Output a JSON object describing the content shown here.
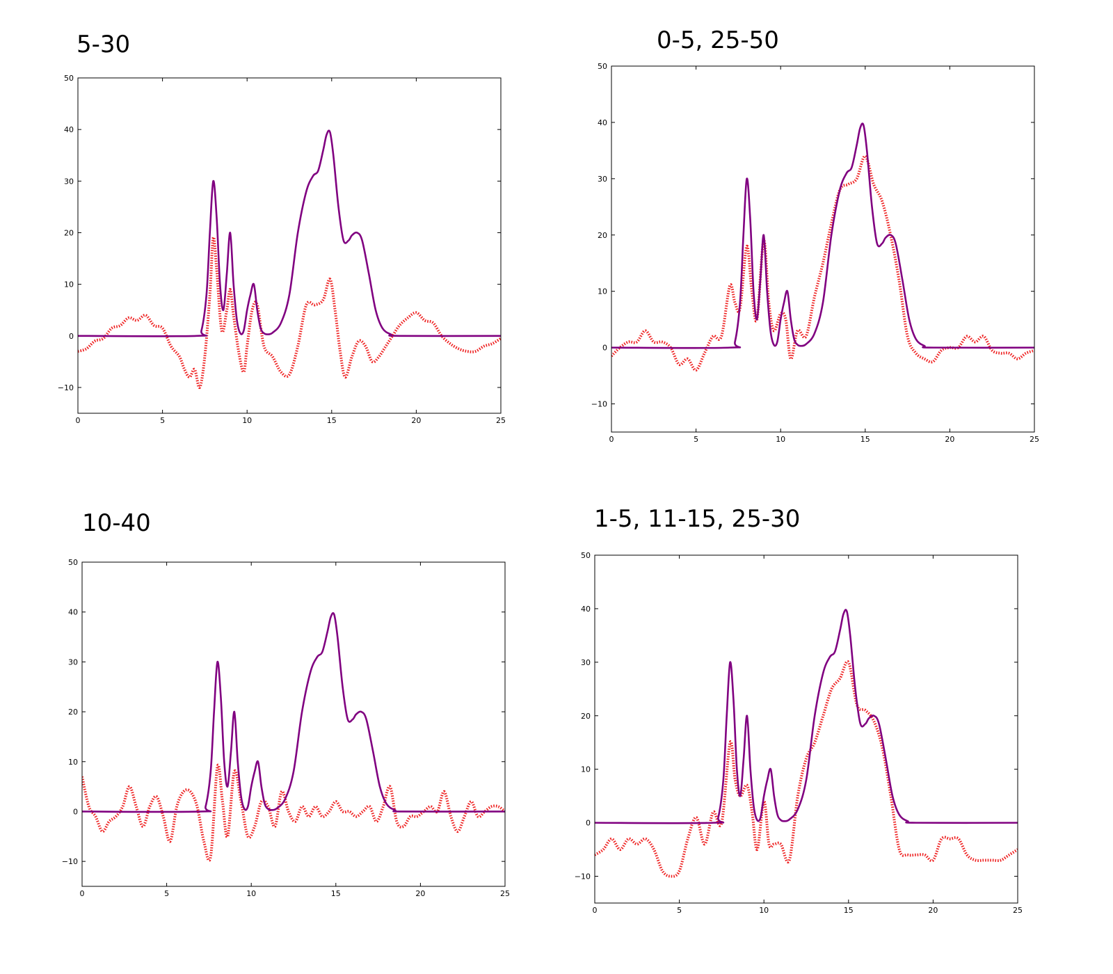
{
  "charts": [
    {
      "title": "5-30",
      "chart_data": {
        "type": "line",
        "xlim": [
          0,
          25
        ],
        "ylim": [
          -15,
          50
        ],
        "xticks": [
          0,
          5,
          10,
          15,
          20,
          25
        ],
        "yticks": [
          -10,
          0,
          10,
          20,
          30,
          40,
          50
        ],
        "series": [
          {
            "style": "solid",
            "color": "#800080",
            "x": [
              0,
              7,
              7.3,
              7.6,
              7.8,
              8.0,
              8.2,
              8.4,
              8.6,
              8.8,
              9.0,
              9.2,
              9.4,
              9.6,
              9.8,
              10.0,
              10.2,
              10.4,
              10.6,
              10.8,
              11.0,
              11.2,
              11.5,
              12.0,
              12.5,
              13.0,
              13.5,
              13.9,
              14.2,
              14.5,
              14.7,
              14.9,
              15.1,
              15.4,
              15.7,
              16.0,
              16.2,
              16.5,
              16.8,
              17.2,
              17.6,
              18.0,
              18.5,
              19.0,
              25
            ],
            "y": [
              0,
              0,
              1,
              8,
              20,
              30,
              23,
              10,
              5,
              12,
              20,
              10,
              3,
              0.5,
              1,
              5,
              8,
              10,
              5,
              1.5,
              0.5,
              0.3,
              0.6,
              2.5,
              8,
              20,
              28,
              31,
              32,
              36,
              39,
              39.5,
              35,
              25,
              18.5,
              18.5,
              19.5,
              20,
              18.5,
              12,
              5,
              1.5,
              0.3,
              0,
              0
            ]
          },
          {
            "style": "dotted",
            "color": "#ee2222",
            "x": [
              0,
              0.5,
              1,
              1.5,
              2,
              2.5,
              3,
              3.5,
              4,
              4.5,
              5,
              5.5,
              6,
              6.3,
              6.6,
              6.9,
              7.2,
              7.5,
              7.8,
              8.0,
              8.2,
              8.5,
              8.8,
              9.0,
              9.2,
              9.5,
              9.8,
              10.0,
              10.3,
              10.6,
              11.0,
              11.5,
              12.0,
              12.5,
              13.0,
              13.5,
              14.0,
              14.5,
              14.9,
              15.2,
              15.5,
              15.8,
              16.2,
              16.6,
              17.0,
              17.4,
              17.8,
              18.2,
              18.6,
              19.0,
              19.5,
              20.0,
              20.5,
              21.0,
              21.5,
              22.0,
              22.5,
              23.0,
              23.5,
              24.0,
              24.5,
              25
            ],
            "y": [
              -3,
              -2.5,
              -1,
              -0.5,
              1.5,
              2,
              3.5,
              3,
              4,
              2,
              1.5,
              -2,
              -4,
              -6.5,
              -8,
              -6.5,
              -10,
              -4,
              8,
              19,
              13,
              1,
              5,
              9,
              4,
              -3,
              -7,
              -2,
              5,
              6,
              -2,
              -4,
              -7,
              -7.5,
              -2,
              6,
              6,
              7,
              11,
              5,
              -3,
              -8,
              -4,
              -1,
              -2,
              -5,
              -4,
              -2,
              0,
              2,
              3.5,
              4.5,
              3,
              2.5,
              0,
              -1.5,
              -2.5,
              -3,
              -3,
              -2,
              -1.5,
              -0.5
            ]
          }
        ]
      }
    },
    {
      "title": "0-5, 25-50",
      "chart_data": {
        "type": "line",
        "xlim": [
          0,
          25
        ],
        "ylim": [
          -15,
          50
        ],
        "xticks": [
          0,
          5,
          10,
          15,
          20,
          25
        ],
        "yticks": [
          -10,
          0,
          10,
          20,
          30,
          40,
          50
        ],
        "series": [
          {
            "style": "solid",
            "color": "#800080",
            "x": [
              0,
              7,
              7.3,
              7.6,
              7.8,
              8.0,
              8.2,
              8.4,
              8.6,
              8.8,
              9.0,
              9.2,
              9.4,
              9.6,
              9.8,
              10.0,
              10.2,
              10.4,
              10.6,
              10.8,
              11.0,
              11.2,
              11.5,
              12.0,
              12.5,
              13.0,
              13.5,
              13.9,
              14.2,
              14.5,
              14.7,
              14.9,
              15.1,
              15.4,
              15.7,
              16.0,
              16.2,
              16.5,
              16.8,
              17.2,
              17.6,
              18.0,
              18.5,
              19.0,
              25
            ],
            "y": [
              0,
              0,
              1,
              8,
              20,
              30,
              23,
              10,
              5,
              12,
              20,
              10,
              3,
              0.5,
              1,
              5,
              8,
              10,
              5,
              1.5,
              0.5,
              0.3,
              0.6,
              2.5,
              8,
              20,
              28,
              31,
              32,
              36,
              39,
              39.5,
              35,
              25,
              18.5,
              18.5,
              19.5,
              20,
              18.5,
              12,
              5,
              1.5,
              0.3,
              0,
              0
            ]
          },
          {
            "style": "dotted",
            "color": "#ee2222",
            "x": [
              0,
              0.5,
              1,
              1.5,
              2,
              2.5,
              3,
              3.5,
              4,
              4.5,
              5,
              5.5,
              6,
              6.5,
              7,
              7.3,
              7.6,
              8.0,
              8.3,
              8.6,
              9.0,
              9.3,
              9.6,
              10.0,
              10.3,
              10.6,
              11.0,
              11.5,
              12.0,
              12.5,
              13.0,
              13.5,
              14.0,
              14.5,
              15.0,
              15.5,
              16.0,
              16.5,
              17.0,
              17.5,
              18.0,
              18.5,
              19.0,
              19.5,
              20.0,
              20.5,
              21.0,
              21.5,
              22.0,
              22.5,
              23.0,
              23.5,
              24.0,
              24.5,
              25
            ],
            "y": [
              -1.5,
              0,
              1,
              1,
              3,
              1,
              1,
              0,
              -3,
              -2,
              -4,
              -1,
              2,
              2,
              11,
              8,
              7,
              18,
              10,
              5,
              19,
              8,
              3,
              6,
              5,
              -2,
              3,
              2,
              9,
              15,
              22,
              28,
              29,
              30,
              34,
              29,
              26,
              20,
              12,
              2,
              -1,
              -2,
              -2.5,
              -0.5,
              0,
              0,
              2,
              1,
              2,
              -0.5,
              -1,
              -1,
              -2,
              -1,
              -0.5
            ]
          }
        ]
      }
    },
    {
      "title": "10-40",
      "chart_data": {
        "type": "line",
        "xlim": [
          0,
          25
        ],
        "ylim": [
          -15,
          50
        ],
        "xticks": [
          0,
          5,
          10,
          15,
          20,
          25
        ],
        "yticks": [
          -10,
          0,
          10,
          20,
          30,
          40,
          50
        ],
        "series": [
          {
            "style": "solid",
            "color": "#800080",
            "x": [
              0,
              7,
              7.3,
              7.6,
              7.8,
              8.0,
              8.2,
              8.4,
              8.6,
              8.8,
              9.0,
              9.2,
              9.4,
              9.6,
              9.8,
              10.0,
              10.2,
              10.4,
              10.6,
              10.8,
              11.0,
              11.2,
              11.5,
              12.0,
              12.5,
              13.0,
              13.5,
              13.9,
              14.2,
              14.5,
              14.7,
              14.9,
              15.1,
              15.4,
              15.7,
              16.0,
              16.2,
              16.5,
              16.8,
              17.2,
              17.6,
              18.0,
              18.5,
              19.0,
              25
            ],
            "y": [
              0,
              0,
              1,
              8,
              20,
              30,
              23,
              10,
              5,
              12,
              20,
              10,
              3,
              0.5,
              1,
              5,
              8,
              10,
              5,
              1.5,
              0.5,
              0.3,
              0.6,
              2.5,
              8,
              20,
              28,
              31,
              32,
              36,
              39,
              39.5,
              35,
              25,
              18.5,
              18.5,
              19.5,
              20,
              18.5,
              12,
              5,
              1.5,
              0.3,
              0,
              0
            ]
          },
          {
            "style": "dotted",
            "color": "#ee2222",
            "x": [
              0,
              0.4,
              0.8,
              1.2,
              1.6,
              2.0,
              2.4,
              2.8,
              3.2,
              3.6,
              4.0,
              4.4,
              4.8,
              5.2,
              5.6,
              6.0,
              6.4,
              6.8,
              7.2,
              7.6,
              8.0,
              8.3,
              8.6,
              9.0,
              9.4,
              9.8,
              10.2,
              10.6,
              11.0,
              11.4,
              11.8,
              12.2,
              12.6,
              13.0,
              13.4,
              13.8,
              14.2,
              14.6,
              15.0,
              15.4,
              15.8,
              16.2,
              16.6,
              17.0,
              17.4,
              17.8,
              18.2,
              18.6,
              19.0,
              19.4,
              19.8,
              20.2,
              20.6,
              21.0,
              21.4,
              21.8,
              22.2,
              22.6,
              23.0,
              23.4,
              23.8,
              24.2,
              24.6,
              25
            ],
            "y": [
              7,
              1,
              -1,
              -4,
              -2,
              -1,
              1,
              5,
              1,
              -3,
              1,
              3,
              -1,
              -6,
              1,
              4,
              4,
              1,
              -6,
              -9,
              9,
              2,
              -5,
              8,
              2,
              -5,
              -3,
              2,
              1,
              -3,
              4,
              0,
              -2,
              1,
              -1,
              1,
              -1,
              0,
              2,
              0,
              0,
              -1,
              0,
              1,
              -2,
              1,
              5,
              -2,
              -3,
              -1,
              -1,
              0,
              1,
              0,
              4,
              -1,
              -4,
              -1,
              2,
              -1,
              0,
              1,
              1,
              0
            ]
          }
        ]
      }
    },
    {
      "title": "1-5, 11-15, 25-30",
      "chart_data": {
        "type": "line",
        "xlim": [
          0,
          25
        ],
        "ylim": [
          -15,
          50
        ],
        "xticks": [
          0,
          5,
          10,
          15,
          20,
          25
        ],
        "yticks": [
          -10,
          0,
          10,
          20,
          30,
          40,
          50
        ],
        "series": [
          {
            "style": "solid",
            "color": "#800080",
            "x": [
              0,
              7,
              7.3,
              7.6,
              7.8,
              8.0,
              8.2,
              8.4,
              8.6,
              8.8,
              9.0,
              9.2,
              9.4,
              9.6,
              9.8,
              10.0,
              10.2,
              10.4,
              10.6,
              10.8,
              11.0,
              11.2,
              11.5,
              12.0,
              12.5,
              13.0,
              13.5,
              13.9,
              14.2,
              14.5,
              14.7,
              14.9,
              15.1,
              15.4,
              15.7,
              16.0,
              16.2,
              16.5,
              16.8,
              17.2,
              17.6,
              18.0,
              18.5,
              19.0,
              25
            ],
            "y": [
              0,
              0,
              1,
              8,
              20,
              30,
              23,
              10,
              5,
              12,
              20,
              10,
              3,
              0.5,
              1,
              5,
              8,
              10,
              5,
              1.5,
              0.5,
              0.3,
              0.6,
              2.5,
              8,
              20,
              28,
              31,
              32,
              36,
              39,
              39.5,
              35,
              25,
              18.5,
              18.5,
              19.5,
              20,
              18.5,
              12,
              5,
              1.5,
              0.3,
              0,
              0
            ]
          },
          {
            "style": "dotted",
            "color": "#ee2222",
            "x": [
              0,
              0.5,
              1,
              1.5,
              2,
              2.5,
              3,
              3.5,
              4,
              4.5,
              5,
              5.5,
              6,
              6.5,
              7,
              7.5,
              8.0,
              8.3,
              8.6,
              9.0,
              9.3,
              9.6,
              10.0,
              10.3,
              10.6,
              11.0,
              11.5,
              12.0,
              12.5,
              13.0,
              13.5,
              14.0,
              14.5,
              15.0,
              15.5,
              16.0,
              16.5,
              17.0,
              17.5,
              18.0,
              18.5,
              19.0,
              19.5,
              20.0,
              20.5,
              21.0,
              21.5,
              22.0,
              22.5,
              23.0,
              23.5,
              24.0,
              24.5,
              25
            ],
            "y": [
              -6,
              -5,
              -3,
              -5,
              -3,
              -4,
              -3,
              -5,
              -9,
              -10,
              -9,
              -3,
              1,
              -4,
              2,
              0,
              15,
              8,
              5,
              7,
              2,
              -5,
              4,
              -4,
              -4,
              -4,
              -7,
              5,
              12,
              15,
              20,
              25,
              27,
              30,
              22,
              21,
              19,
              14,
              5,
              -5,
              -6,
              -6,
              -6,
              -7,
              -3,
              -3,
              -3,
              -6,
              -7,
              -7,
              -7,
              -7,
              -6,
              -5
            ]
          }
        ]
      }
    }
  ]
}
